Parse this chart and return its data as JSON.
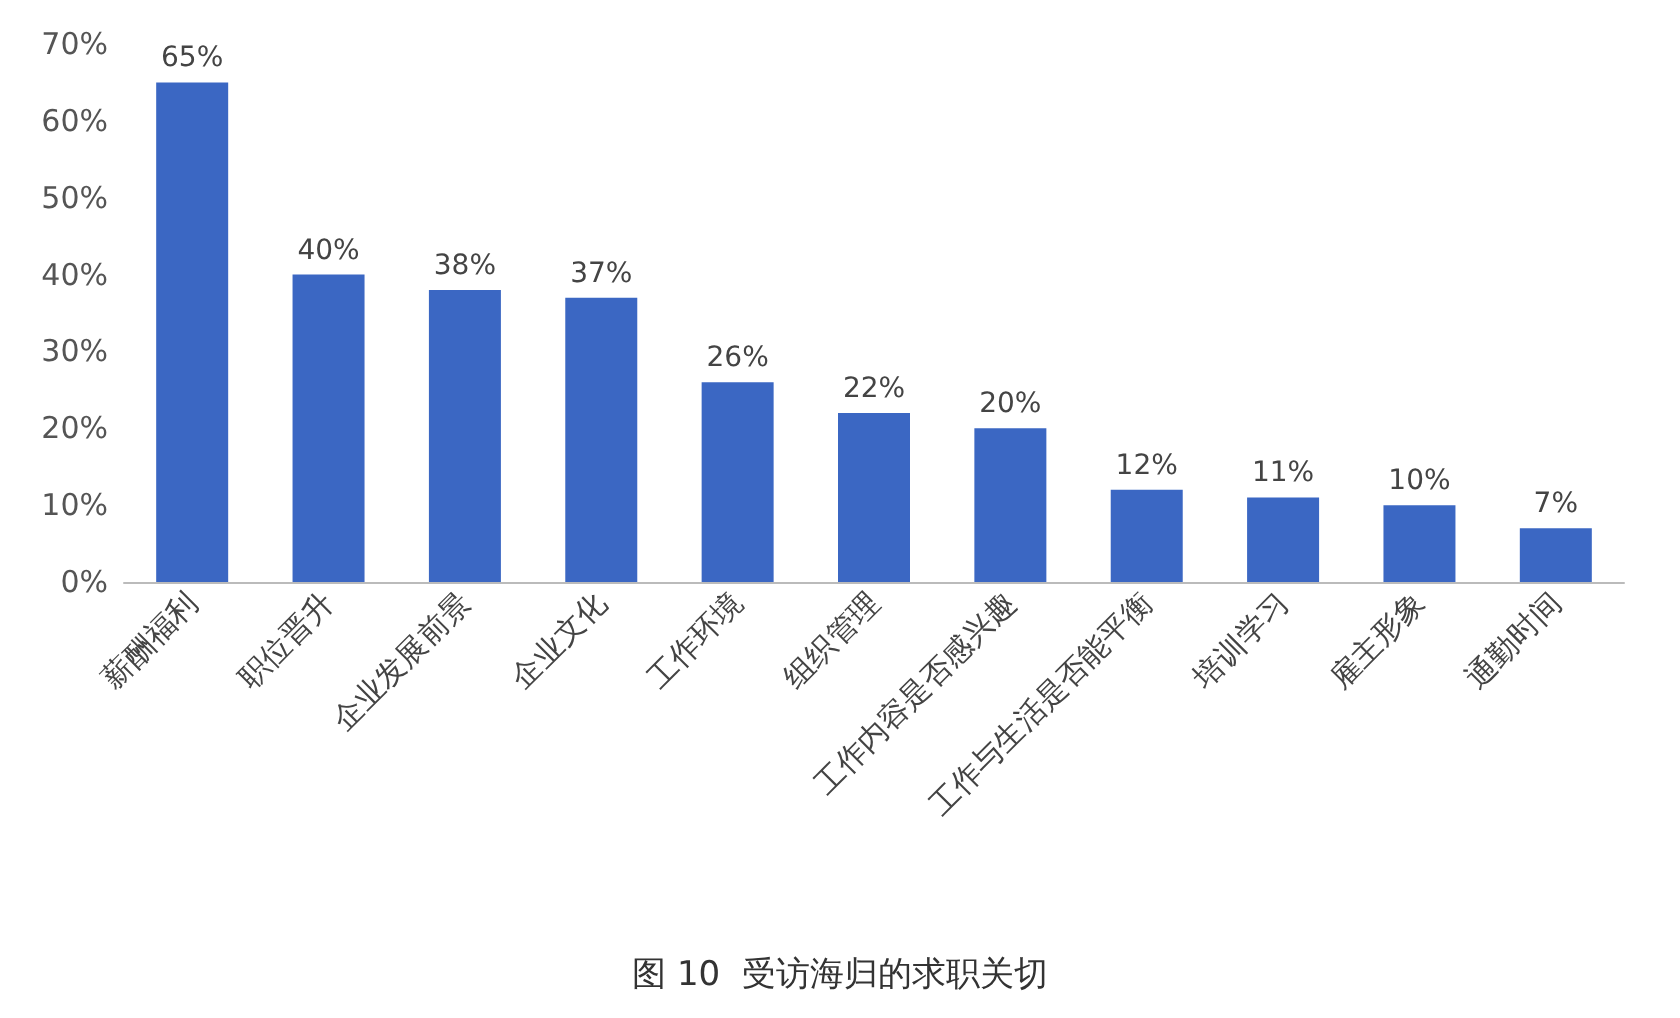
{
  "chart_data": {
    "type": "bar",
    "title": "图 10  受访海归的求职关切",
    "categories": [
      "薪酬福利",
      "职位晋升",
      "企业发展前景",
      "企业文化",
      "工作环境",
      "组织管理",
      "工作内容是否感兴趣",
      "工作与生活是否能平衡",
      "培训学习",
      "雇主形象",
      "通勤时间"
    ],
    "values": [
      65,
      40,
      38,
      37,
      26,
      22,
      20,
      12,
      11,
      10,
      7
    ],
    "value_labels": [
      "65%",
      "40%",
      "38%",
      "37%",
      "26%",
      "22%",
      "20%",
      "12%",
      "11%",
      "10%",
      "7%"
    ],
    "color": "#3b67c3",
    "ylim": [
      0,
      70
    ],
    "yticks": [
      {
        "value": 0,
        "label": "0%"
      },
      {
        "value": 10,
        "label": "10%"
      },
      {
        "value": 20,
        "label": "20%"
      },
      {
        "value": 30,
        "label": "30%"
      },
      {
        "value": 40,
        "label": "40%"
      },
      {
        "value": 50,
        "label": "50%"
      },
      {
        "value": 60,
        "label": "60%"
      },
      {
        "value": 70,
        "label": "70%"
      }
    ],
    "grid": false
  }
}
